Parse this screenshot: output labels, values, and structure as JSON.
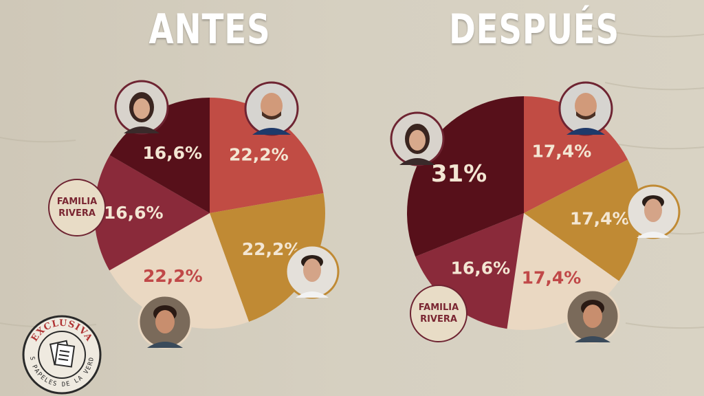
{
  "colors": {
    "dark_maroon": "#57101a",
    "crimson": "#8a2a3a",
    "red": "#c14c44",
    "ochre": "#c08a34",
    "beige": "#ead8c2",
    "light_text": "#f3e6d3",
    "red_text": "#c04848"
  },
  "chart_data": [
    {
      "type": "pie",
      "title": "ANTES",
      "slices": [
        {
          "label": "22,2%",
          "value": 22.2,
          "color": "#c14c44",
          "person": "kiko-rivera",
          "text_color": "#f3e6d3"
        },
        {
          "label": "22,2%",
          "value": 22.2,
          "color": "#c08a34",
          "person": "cayetano-rivera",
          "text_color": "#f3e6d3"
        },
        {
          "label": "22,2%",
          "value": 22.2,
          "color": "#ead8c2",
          "person": "francisco-rivera",
          "text_color": "#c04848"
        },
        {
          "label": "16,6%",
          "value": 16.6,
          "color": "#8a2a3a",
          "person": "familia-rivera",
          "text_color": "#f3e6d3"
        },
        {
          "label": "16,6%",
          "value": 16.6,
          "color": "#57101a",
          "person": "isabel-pantoja",
          "text_color": "#f3e6d3"
        }
      ]
    },
    {
      "type": "pie",
      "title": "DESPUÉS",
      "slices": [
        {
          "label": "17,4%",
          "value": 17.4,
          "color": "#c14c44",
          "person": "kiko-rivera",
          "text_color": "#f3e6d3"
        },
        {
          "label": "17,4%",
          "value": 17.4,
          "color": "#c08a34",
          "person": "cayetano-rivera",
          "text_color": "#f3e6d3"
        },
        {
          "label": "17,4%",
          "value": 17.4,
          "color": "#ead8c2",
          "person": "francisco-rivera",
          "text_color": "#c04848"
        },
        {
          "label": "16,6%",
          "value": 16.6,
          "color": "#8a2a3a",
          "person": "familia-rivera",
          "text_color": "#f3e6d3"
        },
        {
          "label": "31%",
          "value": 31,
          "color": "#57101a",
          "person": "isabel-pantoja",
          "text_color": "#f3e6d3"
        }
      ]
    }
  ],
  "badges": {
    "left": "FAMILIA\nRIVERA",
    "right": "FAMILIA\nRIVERA"
  },
  "stamp": {
    "top_text": "EXCLUSIVA",
    "bottom_text": "LOS PAPELES DE LA VERDAD",
    "icon": "document-icon"
  }
}
